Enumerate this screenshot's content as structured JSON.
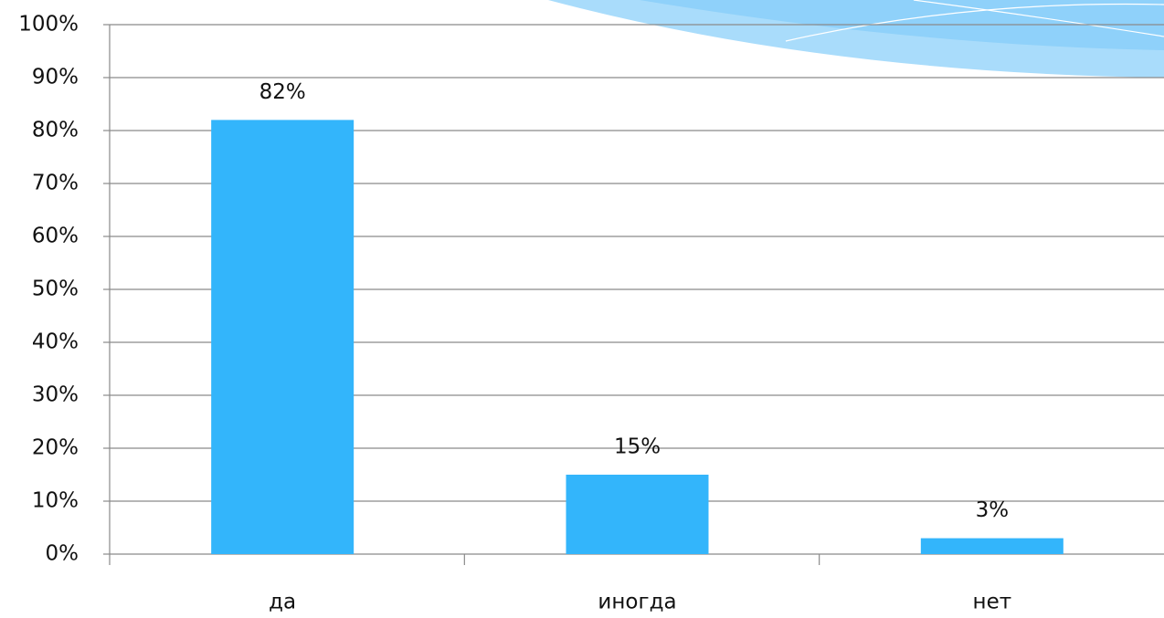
{
  "chart_data": {
    "type": "bar",
    "categories": [
      "да",
      "иногда",
      "нет"
    ],
    "values": [
      82,
      15,
      3
    ],
    "value_labels": [
      "82%",
      "15%",
      "3%"
    ],
    "color": "#33b5fb",
    "ylim": [
      0,
      100
    ],
    "yticks": [
      {
        "value": 0,
        "label": "0%"
      },
      {
        "value": 10,
        "label": "10%"
      },
      {
        "value": 20,
        "label": "20%"
      },
      {
        "value": 30,
        "label": "30%"
      },
      {
        "value": 40,
        "label": "40%"
      },
      {
        "value": 50,
        "label": "50%"
      },
      {
        "value": 60,
        "label": "60%"
      },
      {
        "value": 70,
        "label": "70%"
      },
      {
        "value": 80,
        "label": "80%"
      },
      {
        "value": 90,
        "label": "90%"
      },
      {
        "value": 100,
        "label": "100%"
      }
    ],
    "grid": true
  }
}
